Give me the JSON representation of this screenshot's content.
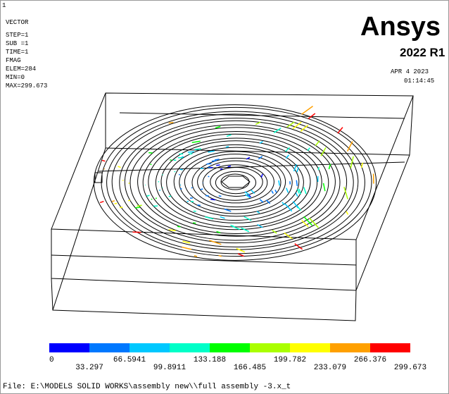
{
  "window_number": "1",
  "info": [
    "VECTOR",
    "STEP=1",
    "SUB =1",
    "TIME=1",
    "FMAG",
    "ELEM=284",
    "MIN=0",
    "MAX=299.673"
  ],
  "logo": {
    "brand": "Ansys",
    "version": "2022 R1"
  },
  "date": "APR  4 2023",
  "time": "01:14:45",
  "legend": {
    "colors": [
      "#0000ff",
      "#0078ff",
      "#00c8ff",
      "#00ffc8",
      "#00ff00",
      "#aaff00",
      "#ffff00",
      "#ffa000",
      "#ff0000"
    ],
    "labels": [
      "0",
      "33.297",
      "66.5941",
      "99.8911",
      "133.188",
      "166.485",
      "199.782",
      "233.079",
      "266.376",
      "299.673"
    ]
  },
  "footer": "File: E:\\MODELS SOLID WORKS\\assembly new\\\\full assembly -3.x_t"
}
